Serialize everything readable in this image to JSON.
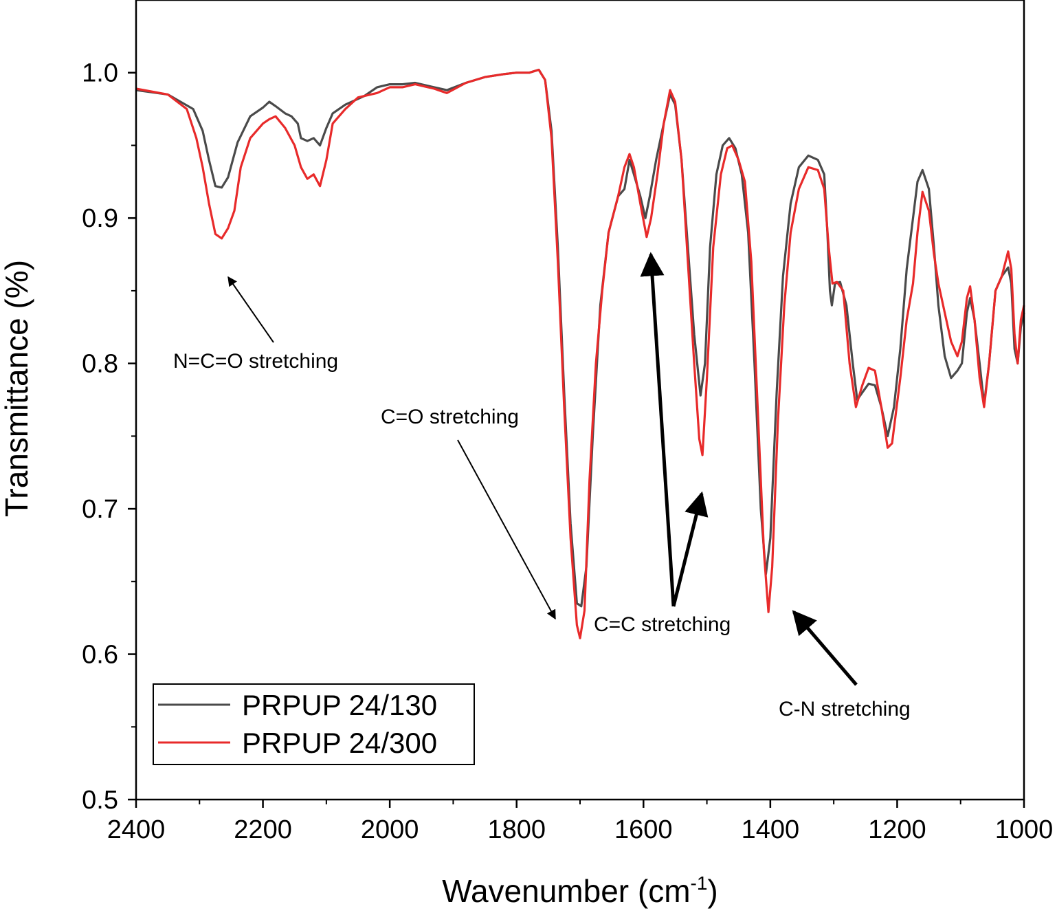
{
  "chart_data": {
    "type": "line",
    "xlabel": "Wavenumber (cm",
    "xlabel_sup": "-1",
    "xlabel_close": ")",
    "ylabel": "Transmittance (%)",
    "xlim": [
      2400,
      1000
    ],
    "ylim": [
      0.5,
      1.05
    ],
    "x_ticks": [
      2400,
      2200,
      2000,
      1800,
      1600,
      1400,
      1200,
      1000
    ],
    "x_tick_labels": [
      "2400",
      "2200",
      "2000",
      "1800",
      "1600",
      "1400",
      "1200",
      "1000"
    ],
    "y_ticks": [
      0.5,
      0.6,
      0.7,
      0.8,
      0.9,
      1.0
    ],
    "y_tick_labels": [
      "0.5",
      "0.6",
      "0.7",
      "0.8",
      "0.9",
      "1.0"
    ],
    "legend_position": "bottom-left",
    "series": [
      {
        "name": "PRPUP 24/130",
        "color": "#4a4a4a",
        "points": [
          [
            2400,
            0.988
          ],
          [
            2350,
            0.985
          ],
          [
            2310,
            0.975
          ],
          [
            2295,
            0.96
          ],
          [
            2285,
            0.94
          ],
          [
            2275,
            0.922
          ],
          [
            2265,
            0.921
          ],
          [
            2255,
            0.928
          ],
          [
            2240,
            0.952
          ],
          [
            2220,
            0.97
          ],
          [
            2200,
            0.976
          ],
          [
            2190,
            0.98
          ],
          [
            2180,
            0.977
          ],
          [
            2165,
            0.972
          ],
          [
            2155,
            0.97
          ],
          [
            2145,
            0.965
          ],
          [
            2140,
            0.955
          ],
          [
            2130,
            0.953
          ],
          [
            2120,
            0.955
          ],
          [
            2110,
            0.95
          ],
          [
            2100,
            0.962
          ],
          [
            2090,
            0.972
          ],
          [
            2070,
            0.978
          ],
          [
            2040,
            0.984
          ],
          [
            2020,
            0.99
          ],
          [
            2000,
            0.992
          ],
          [
            1980,
            0.992
          ],
          [
            1960,
            0.993
          ],
          [
            1930,
            0.99
          ],
          [
            1910,
            0.988
          ],
          [
            1880,
            0.993
          ],
          [
            1850,
            0.997
          ],
          [
            1820,
            0.999
          ],
          [
            1800,
            1.0
          ],
          [
            1780,
            1.0
          ],
          [
            1765,
            1.002
          ],
          [
            1755,
            0.995
          ],
          [
            1745,
            0.96
          ],
          [
            1735,
            0.88
          ],
          [
            1725,
            0.78
          ],
          [
            1715,
            0.69
          ],
          [
            1705,
            0.635
          ],
          [
            1698,
            0.633
          ],
          [
            1690,
            0.66
          ],
          [
            1680,
            0.75
          ],
          [
            1668,
            0.84
          ],
          [
            1655,
            0.89
          ],
          [
            1640,
            0.915
          ],
          [
            1630,
            0.92
          ],
          [
            1622,
            0.94
          ],
          [
            1615,
            0.93
          ],
          [
            1605,
            0.915
          ],
          [
            1597,
            0.9
          ],
          [
            1590,
            0.915
          ],
          [
            1580,
            0.94
          ],
          [
            1568,
            0.965
          ],
          [
            1558,
            0.985
          ],
          [
            1550,
            0.978
          ],
          [
            1540,
            0.94
          ],
          [
            1530,
            0.88
          ],
          [
            1520,
            0.82
          ],
          [
            1510,
            0.778
          ],
          [
            1503,
            0.8
          ],
          [
            1495,
            0.88
          ],
          [
            1485,
            0.93
          ],
          [
            1475,
            0.95
          ],
          [
            1465,
            0.955
          ],
          [
            1455,
            0.948
          ],
          [
            1445,
            0.93
          ],
          [
            1435,
            0.89
          ],
          [
            1425,
            0.8
          ],
          [
            1415,
            0.7
          ],
          [
            1407,
            0.655
          ],
          [
            1400,
            0.68
          ],
          [
            1390,
            0.78
          ],
          [
            1380,
            0.86
          ],
          [
            1368,
            0.91
          ],
          [
            1355,
            0.935
          ],
          [
            1340,
            0.943
          ],
          [
            1325,
            0.94
          ],
          [
            1315,
            0.93
          ],
          [
            1310,
            0.89
          ],
          [
            1306,
            0.85
          ],
          [
            1303,
            0.84
          ],
          [
            1298,
            0.855
          ],
          [
            1290,
            0.856
          ],
          [
            1280,
            0.84
          ],
          [
            1270,
            0.8
          ],
          [
            1263,
            0.775
          ],
          [
            1255,
            0.78
          ],
          [
            1245,
            0.786
          ],
          [
            1235,
            0.785
          ],
          [
            1225,
            0.77
          ],
          [
            1215,
            0.75
          ],
          [
            1205,
            0.77
          ],
          [
            1195,
            0.81
          ],
          [
            1185,
            0.865
          ],
          [
            1175,
            0.9
          ],
          [
            1168,
            0.925
          ],
          [
            1160,
            0.933
          ],
          [
            1150,
            0.92
          ],
          [
            1142,
            0.88
          ],
          [
            1135,
            0.84
          ],
          [
            1125,
            0.805
          ],
          [
            1115,
            0.79
          ],
          [
            1105,
            0.795
          ],
          [
            1098,
            0.8
          ],
          [
            1090,
            0.835
          ],
          [
            1085,
            0.845
          ],
          [
            1078,
            0.83
          ],
          [
            1070,
            0.8
          ],
          [
            1063,
            0.772
          ],
          [
            1055,
            0.8
          ],
          [
            1045,
            0.85
          ],
          [
            1035,
            0.86
          ],
          [
            1025,
            0.866
          ],
          [
            1020,
            0.855
          ],
          [
            1015,
            0.81
          ],
          [
            1010,
            0.8
          ],
          [
            1005,
            0.825
          ],
          [
            1000,
            0.835
          ]
        ]
      },
      {
        "name": "PRPUP 24/300",
        "color": "#e82a2a",
        "points": [
          [
            2400,
            0.989
          ],
          [
            2350,
            0.985
          ],
          [
            2320,
            0.975
          ],
          [
            2305,
            0.955
          ],
          [
            2295,
            0.935
          ],
          [
            2285,
            0.91
          ],
          [
            2275,
            0.889
          ],
          [
            2265,
            0.886
          ],
          [
            2255,
            0.893
          ],
          [
            2245,
            0.905
          ],
          [
            2235,
            0.935
          ],
          [
            2220,
            0.955
          ],
          [
            2200,
            0.965
          ],
          [
            2190,
            0.968
          ],
          [
            2180,
            0.97
          ],
          [
            2165,
            0.962
          ],
          [
            2150,
            0.95
          ],
          [
            2140,
            0.935
          ],
          [
            2130,
            0.927
          ],
          [
            2120,
            0.93
          ],
          [
            2110,
            0.922
          ],
          [
            2100,
            0.94
          ],
          [
            2090,
            0.965
          ],
          [
            2070,
            0.975
          ],
          [
            2050,
            0.983
          ],
          [
            2020,
            0.986
          ],
          [
            2000,
            0.99
          ],
          [
            1980,
            0.99
          ],
          [
            1960,
            0.992
          ],
          [
            1930,
            0.989
          ],
          [
            1910,
            0.986
          ],
          [
            1880,
            0.993
          ],
          [
            1850,
            0.997
          ],
          [
            1820,
            0.999
          ],
          [
            1800,
            1.0
          ],
          [
            1780,
            1.0
          ],
          [
            1765,
            1.002
          ],
          [
            1755,
            0.995
          ],
          [
            1745,
            0.955
          ],
          [
            1735,
            0.87
          ],
          [
            1725,
            0.77
          ],
          [
            1715,
            0.68
          ],
          [
            1705,
            0.62
          ],
          [
            1700,
            0.611
          ],
          [
            1693,
            0.63
          ],
          [
            1685,
            0.72
          ],
          [
            1675,
            0.8
          ],
          [
            1665,
            0.85
          ],
          [
            1655,
            0.89
          ],
          [
            1640,
            0.915
          ],
          [
            1630,
            0.935
          ],
          [
            1622,
            0.944
          ],
          [
            1615,
            0.935
          ],
          [
            1605,
            0.91
          ],
          [
            1595,
            0.887
          ],
          [
            1588,
            0.9
          ],
          [
            1578,
            0.93
          ],
          [
            1568,
            0.965
          ],
          [
            1558,
            0.988
          ],
          [
            1550,
            0.98
          ],
          [
            1540,
            0.94
          ],
          [
            1530,
            0.87
          ],
          [
            1520,
            0.8
          ],
          [
            1512,
            0.748
          ],
          [
            1507,
            0.737
          ],
          [
            1500,
            0.79
          ],
          [
            1490,
            0.88
          ],
          [
            1478,
            0.93
          ],
          [
            1468,
            0.948
          ],
          [
            1460,
            0.95
          ],
          [
            1450,
            0.94
          ],
          [
            1440,
            0.925
          ],
          [
            1430,
            0.87
          ],
          [
            1420,
            0.77
          ],
          [
            1410,
            0.67
          ],
          [
            1403,
            0.629
          ],
          [
            1397,
            0.66
          ],
          [
            1388,
            0.76
          ],
          [
            1378,
            0.84
          ],
          [
            1368,
            0.89
          ],
          [
            1355,
            0.92
          ],
          [
            1340,
            0.935
          ],
          [
            1325,
            0.933
          ],
          [
            1315,
            0.92
          ],
          [
            1308,
            0.88
          ],
          [
            1302,
            0.855
          ],
          [
            1295,
            0.856
          ],
          [
            1285,
            0.85
          ],
          [
            1275,
            0.8
          ],
          [
            1265,
            0.77
          ],
          [
            1255,
            0.785
          ],
          [
            1245,
            0.797
          ],
          [
            1235,
            0.795
          ],
          [
            1225,
            0.77
          ],
          [
            1215,
            0.742
          ],
          [
            1208,
            0.745
          ],
          [
            1195,
            0.79
          ],
          [
            1185,
            0.83
          ],
          [
            1175,
            0.855
          ],
          [
            1168,
            0.89
          ],
          [
            1160,
            0.918
          ],
          [
            1150,
            0.905
          ],
          [
            1142,
            0.875
          ],
          [
            1135,
            0.855
          ],
          [
            1125,
            0.835
          ],
          [
            1115,
            0.815
          ],
          [
            1105,
            0.805
          ],
          [
            1098,
            0.815
          ],
          [
            1090,
            0.845
          ],
          [
            1085,
            0.853
          ],
          [
            1078,
            0.83
          ],
          [
            1070,
            0.79
          ],
          [
            1063,
            0.77
          ],
          [
            1055,
            0.8
          ],
          [
            1045,
            0.85
          ],
          [
            1035,
            0.86
          ],
          [
            1025,
            0.877
          ],
          [
            1020,
            0.865
          ],
          [
            1015,
            0.82
          ],
          [
            1010,
            0.8
          ],
          [
            1005,
            0.83
          ],
          [
            1000,
            0.84
          ]
        ]
      }
    ],
    "annotations": [
      {
        "text": "N=C=O stretching"
      },
      {
        "text": "C=O stretching"
      },
      {
        "text": "C=C stretching"
      },
      {
        "text": "C-N stretching"
      }
    ]
  }
}
